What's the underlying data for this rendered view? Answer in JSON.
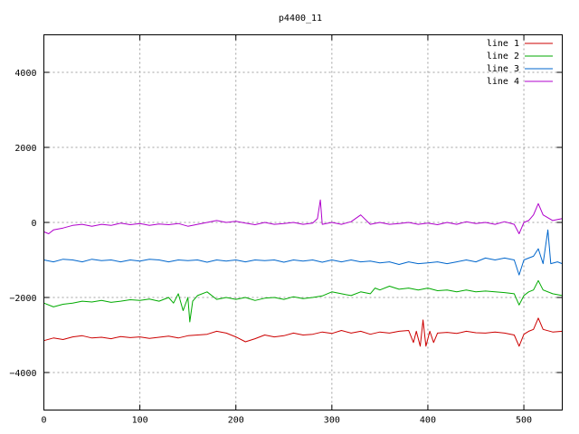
{
  "chart_data": {
    "type": "line",
    "title": "p4400_11",
    "xlabel": "",
    "ylabel": "",
    "xlim": [
      0,
      540
    ],
    "ylim": [
      -5000,
      5000
    ],
    "xticks": [
      0,
      100,
      200,
      300,
      400,
      500
    ],
    "yticks": [
      -4000,
      -2000,
      0,
      2000,
      4000
    ],
    "grid": true,
    "legend_position": "top-right",
    "series": [
      {
        "name": "line 1",
        "color": "#cc0000",
        "points": [
          [
            0,
            -3150
          ],
          [
            10,
            -3080
          ],
          [
            20,
            -3120
          ],
          [
            30,
            -3050
          ],
          [
            40,
            -3020
          ],
          [
            50,
            -3080
          ],
          [
            60,
            -3060
          ],
          [
            70,
            -3100
          ],
          [
            80,
            -3040
          ],
          [
            90,
            -3070
          ],
          [
            100,
            -3050
          ],
          [
            110,
            -3090
          ],
          [
            120,
            -3060
          ],
          [
            130,
            -3030
          ],
          [
            140,
            -3080
          ],
          [
            150,
            -3020
          ],
          [
            160,
            -3000
          ],
          [
            170,
            -2980
          ],
          [
            180,
            -2900
          ],
          [
            190,
            -2950
          ],
          [
            200,
            -3050
          ],
          [
            210,
            -3180
          ],
          [
            220,
            -3100
          ],
          [
            230,
            -3000
          ],
          [
            240,
            -3050
          ],
          [
            250,
            -3020
          ],
          [
            260,
            -2950
          ],
          [
            270,
            -3000
          ],
          [
            280,
            -2980
          ],
          [
            290,
            -2920
          ],
          [
            300,
            -2960
          ],
          [
            310,
            -2880
          ],
          [
            320,
            -2950
          ],
          [
            330,
            -2900
          ],
          [
            340,
            -2980
          ],
          [
            350,
            -2920
          ],
          [
            360,
            -2950
          ],
          [
            370,
            -2900
          ],
          [
            380,
            -2880
          ],
          [
            385,
            -3200
          ],
          [
            388,
            -2900
          ],
          [
            392,
            -3300
          ],
          [
            395,
            -2600
          ],
          [
            398,
            -3300
          ],
          [
            402,
            -2900
          ],
          [
            406,
            -3200
          ],
          [
            410,
            -2950
          ],
          [
            420,
            -2930
          ],
          [
            430,
            -2960
          ],
          [
            440,
            -2900
          ],
          [
            450,
            -2940
          ],
          [
            460,
            -2950
          ],
          [
            470,
            -2920
          ],
          [
            480,
            -2950
          ],
          [
            490,
            -3000
          ],
          [
            495,
            -3300
          ],
          [
            500,
            -2980
          ],
          [
            505,
            -2900
          ],
          [
            510,
            -2850
          ],
          [
            515,
            -2550
          ],
          [
            520,
            -2850
          ],
          [
            530,
            -2920
          ],
          [
            540,
            -2900
          ]
        ]
      },
      {
        "name": "line 2",
        "color": "#00aa00",
        "points": [
          [
            0,
            -2150
          ],
          [
            10,
            -2250
          ],
          [
            20,
            -2180
          ],
          [
            30,
            -2150
          ],
          [
            40,
            -2100
          ],
          [
            50,
            -2120
          ],
          [
            60,
            -2080
          ],
          [
            70,
            -2130
          ],
          [
            80,
            -2100
          ],
          [
            90,
            -2060
          ],
          [
            100,
            -2080
          ],
          [
            110,
            -2040
          ],
          [
            120,
            -2100
          ],
          [
            130,
            -2000
          ],
          [
            135,
            -2150
          ],
          [
            140,
            -1900
          ],
          [
            145,
            -2350
          ],
          [
            150,
            -2000
          ],
          [
            152,
            -2650
          ],
          [
            155,
            -2100
          ],
          [
            160,
            -1950
          ],
          [
            170,
            -1850
          ],
          [
            180,
            -2050
          ],
          [
            190,
            -2000
          ],
          [
            200,
            -2050
          ],
          [
            210,
            -2000
          ],
          [
            220,
            -2080
          ],
          [
            230,
            -2020
          ],
          [
            240,
            -2000
          ],
          [
            250,
            -2050
          ],
          [
            260,
            -1980
          ],
          [
            270,
            -2030
          ],
          [
            280,
            -2000
          ],
          [
            290,
            -1960
          ],
          [
            300,
            -1850
          ],
          [
            310,
            -1900
          ],
          [
            320,
            -1950
          ],
          [
            330,
            -1850
          ],
          [
            340,
            -1900
          ],
          [
            345,
            -1750
          ],
          [
            350,
            -1800
          ],
          [
            360,
            -1700
          ],
          [
            370,
            -1780
          ],
          [
            380,
            -1750
          ],
          [
            390,
            -1800
          ],
          [
            400,
            -1750
          ],
          [
            410,
            -1820
          ],
          [
            420,
            -1800
          ],
          [
            430,
            -1850
          ],
          [
            440,
            -1800
          ],
          [
            450,
            -1850
          ],
          [
            460,
            -1830
          ],
          [
            470,
            -1850
          ],
          [
            480,
            -1870
          ],
          [
            490,
            -1900
          ],
          [
            495,
            -2200
          ],
          [
            500,
            -1950
          ],
          [
            505,
            -1850
          ],
          [
            510,
            -1800
          ],
          [
            515,
            -1550
          ],
          [
            520,
            -1800
          ],
          [
            530,
            -1900
          ],
          [
            540,
            -1950
          ]
        ]
      },
      {
        "name": "line 3",
        "color": "#0066cc",
        "points": [
          [
            0,
            -1000
          ],
          [
            10,
            -1050
          ],
          [
            20,
            -980
          ],
          [
            30,
            -1000
          ],
          [
            40,
            -1050
          ],
          [
            50,
            -980
          ],
          [
            60,
            -1020
          ],
          [
            70,
            -1000
          ],
          [
            80,
            -1050
          ],
          [
            90,
            -1000
          ],
          [
            100,
            -1030
          ],
          [
            110,
            -980
          ],
          [
            120,
            -1000
          ],
          [
            130,
            -1050
          ],
          [
            140,
            -1000
          ],
          [
            150,
            -1020
          ],
          [
            160,
            -1000
          ],
          [
            170,
            -1060
          ],
          [
            180,
            -1000
          ],
          [
            190,
            -1030
          ],
          [
            200,
            -1000
          ],
          [
            210,
            -1050
          ],
          [
            220,
            -1000
          ],
          [
            230,
            -1020
          ],
          [
            240,
            -1000
          ],
          [
            250,
            -1060
          ],
          [
            260,
            -1000
          ],
          [
            270,
            -1030
          ],
          [
            280,
            -1000
          ],
          [
            290,
            -1060
          ],
          [
            300,
            -1000
          ],
          [
            310,
            -1050
          ],
          [
            320,
            -1000
          ],
          [
            330,
            -1050
          ],
          [
            340,
            -1030
          ],
          [
            350,
            -1080
          ],
          [
            360,
            -1050
          ],
          [
            370,
            -1120
          ],
          [
            380,
            -1050
          ],
          [
            390,
            -1100
          ],
          [
            400,
            -1080
          ],
          [
            410,
            -1050
          ],
          [
            420,
            -1100
          ],
          [
            430,
            -1050
          ],
          [
            440,
            -1000
          ],
          [
            450,
            -1050
          ],
          [
            460,
            -950
          ],
          [
            470,
            -1000
          ],
          [
            480,
            -950
          ],
          [
            490,
            -1000
          ],
          [
            495,
            -1400
          ],
          [
            500,
            -1000
          ],
          [
            505,
            -950
          ],
          [
            510,
            -900
          ],
          [
            515,
            -700
          ],
          [
            520,
            -1100
          ],
          [
            525,
            -200
          ],
          [
            528,
            -1100
          ],
          [
            535,
            -1050
          ],
          [
            540,
            -1100
          ]
        ]
      },
      {
        "name": "line 4",
        "color": "#b000cc",
        "points": [
          [
            0,
            -250
          ],
          [
            5,
            -300
          ],
          [
            10,
            -200
          ],
          [
            20,
            -150
          ],
          [
            30,
            -80
          ],
          [
            40,
            -50
          ],
          [
            50,
            -100
          ],
          [
            60,
            -50
          ],
          [
            70,
            -80
          ],
          [
            80,
            -20
          ],
          [
            90,
            -60
          ],
          [
            100,
            -30
          ],
          [
            110,
            -80
          ],
          [
            120,
            -40
          ],
          [
            130,
            -60
          ],
          [
            140,
            -30
          ],
          [
            150,
            -100
          ],
          [
            160,
            -50
          ],
          [
            170,
            0
          ],
          [
            180,
            50
          ],
          [
            190,
            0
          ],
          [
            200,
            30
          ],
          [
            210,
            -20
          ],
          [
            220,
            -60
          ],
          [
            230,
            0
          ],
          [
            240,
            -50
          ],
          [
            250,
            -30
          ],
          [
            260,
            0
          ],
          [
            270,
            -50
          ],
          [
            280,
            -20
          ],
          [
            285,
            100
          ],
          [
            288,
            600
          ],
          [
            290,
            -50
          ],
          [
            300,
            0
          ],
          [
            310,
            -50
          ],
          [
            320,
            20
          ],
          [
            330,
            200
          ],
          [
            340,
            -50
          ],
          [
            350,
            0
          ],
          [
            360,
            -50
          ],
          [
            370,
            -30
          ],
          [
            380,
            0
          ],
          [
            390,
            -50
          ],
          [
            400,
            -20
          ],
          [
            410,
            -60
          ],
          [
            420,
            0
          ],
          [
            430,
            -50
          ],
          [
            440,
            20
          ],
          [
            450,
            -30
          ],
          [
            460,
            0
          ],
          [
            470,
            -50
          ],
          [
            480,
            20
          ],
          [
            490,
            -50
          ],
          [
            495,
            -300
          ],
          [
            500,
            0
          ],
          [
            505,
            50
          ],
          [
            510,
            200
          ],
          [
            515,
            500
          ],
          [
            520,
            200
          ],
          [
            530,
            50
          ],
          [
            540,
            100
          ]
        ]
      }
    ]
  }
}
